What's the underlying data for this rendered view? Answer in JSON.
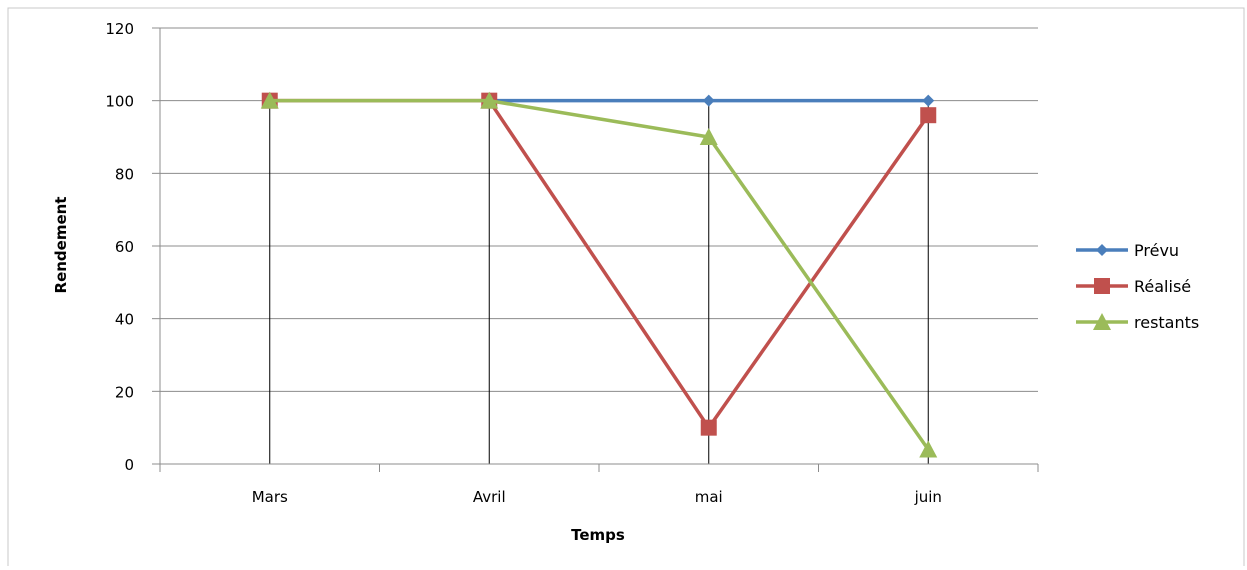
{
  "chart_data": {
    "type": "line",
    "title": "",
    "xlabel": "Temps",
    "ylabel": "Rendement",
    "categories": [
      "Mars",
      "Avril",
      "mai",
      "juin"
    ],
    "ylim": [
      0,
      120
    ],
    "yticks": [
      0,
      20,
      40,
      60,
      80,
      100,
      120
    ],
    "grid": true,
    "legend_position": "right",
    "series": [
      {
        "name": "Prévu",
        "color": "#4a7ebb",
        "marker": "diamond",
        "values": [
          null,
          100,
          100,
          100
        ]
      },
      {
        "name": "Réalisé",
        "color": "#c0504d",
        "marker": "square",
        "values": [
          100,
          100,
          10,
          96
        ]
      },
      {
        "name": "restants",
        "color": "#9bbb59",
        "marker": "triangle",
        "values": [
          100,
          100,
          90,
          4
        ]
      }
    ]
  }
}
